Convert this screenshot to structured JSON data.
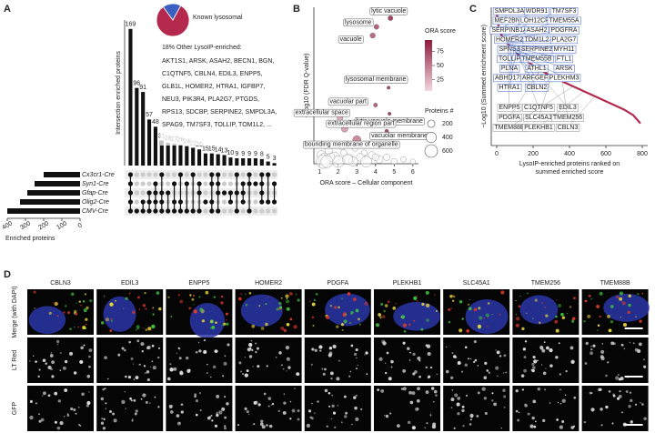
{
  "panel_a": {
    "label": "A",
    "y_label": "Intersection enriched proteins",
    "x_label": "Enriched proteins",
    "sets": [
      "Cx3cr1-Cre",
      "Syn1-Cre",
      "Gfap-Cre",
      "Olig2-Cre",
      "CMV-Cre"
    ],
    "set_sizes": [
      200,
      250,
      290,
      330,
      400
    ],
    "set_xlim": [
      0,
      400
    ],
    "set_xticks": [
      400,
      300,
      200,
      100,
      0
    ],
    "values": [
      169,
      96,
      91,
      57,
      48,
      31,
      28,
      27,
      26,
      24,
      22,
      20,
      15,
      15,
      14,
      13,
      10,
      9,
      9,
      9,
      9,
      8,
      5,
      3
    ],
    "ylim": [
      0,
      180
    ],
    "intersections": [
      [
        0,
        1,
        2,
        3,
        4
      ],
      [
        4
      ],
      [
        3,
        4
      ],
      [
        2,
        3,
        4
      ],
      [
        1,
        2,
        3,
        4
      ],
      [
        0,
        2,
        3,
        4
      ],
      [
        2,
        4
      ],
      [
        1,
        3,
        4
      ],
      [
        0,
        3,
        4
      ],
      [
        1,
        4
      ],
      [
        0,
        4
      ],
      [
        1,
        2,
        4
      ],
      [
        3
      ],
      [
        0,
        1,
        3,
        4
      ],
      [
        0,
        1,
        2,
        4
      ],
      [
        2
      ],
      [
        2,
        3
      ],
      [
        0,
        2,
        4
      ],
      [
        1,
        2,
        3
      ],
      [
        0,
        1,
        4
      ],
      [
        1
      ],
      [
        0,
        1,
        2,
        3
      ],
      [
        0,
        3
      ],
      [
        1,
        3
      ]
    ],
    "pie": {
      "values": [
        82,
        18
      ],
      "colors": [
        "#b5294f",
        "#3b5fc0"
      ],
      "known_label": "Known lysosomal",
      "other_label": "18% Other LysoIP-enriched:",
      "other_list": [
        "AKT1S1, ARSK, ASAH2, BECN1, BGN,",
        "C1QTNF5, CBLN4, EDIL3, ENPP5,",
        "GLB1L, HOMER2, HTRA1, IGFBP7,",
        "NEU3, PIK3R4, PLA2G7, PTGDS,",
        "RPS13, SDCBP, SERPINE2, SMPDL3A,",
        "SPAG9, TM7SF3, TOLLIP, TOM1L2, ..."
      ]
    }
  },
  "panel_b": {
    "label": "B",
    "type": "scatter",
    "x_label": "ORA score – Cellular component",
    "y_label": "−Log10 (FDR Q-value)",
    "xlim": [
      0.7,
      6.3
    ],
    "xticks": [
      1,
      2,
      3,
      4,
      5,
      6
    ],
    "ylim": [
      0,
      72
    ],
    "points": [
      {
        "name": "lytic vacuole",
        "x": 4.8,
        "y": 67,
        "size": 90
      },
      {
        "name": "lysosome",
        "x": 4.05,
        "y": 63,
        "size": 90
      },
      {
        "name": "vacuole",
        "x": 3.85,
        "y": 59,
        "size": 100
      },
      {
        "name": "lysosomal membrane",
        "x": 4.7,
        "y": 35,
        "size": 40
      },
      {
        "name": "vacuolar part",
        "x": 4.0,
        "y": 27,
        "size": 60
      },
      {
        "name": "lytic vacuole membrane",
        "x": 4.75,
        "y": 23,
        "size": 40
      },
      {
        "name": "extracellular space",
        "x": 2.1,
        "y": 21,
        "size": 120
      },
      {
        "name": "extracellular region part",
        "x": 2.35,
        "y": 16,
        "size": 150
      },
      {
        "name": "vacuolar membrane",
        "x": 4.6,
        "y": 15,
        "size": 50
      },
      {
        "name": "bounding membrane of organelle",
        "x": 3.0,
        "y": 11,
        "size": 250
      }
    ],
    "other_points": {
      "x": [
        1.1,
        1.3,
        1.5,
        1.8,
        2.0,
        2.3,
        2.6,
        2.9,
        3.2,
        3.5,
        3.8,
        4.2,
        4.6,
        5.0,
        5.5,
        6.0,
        1.2,
        1.6,
        2.2,
        2.8,
        3.4,
        4.0,
        1.4,
        2.5
      ],
      "y": [
        4,
        2,
        6,
        3,
        1,
        5,
        2,
        7,
        3,
        1,
        4,
        2,
        3,
        1,
        2,
        1,
        1,
        3,
        8,
        1,
        5,
        3,
        1,
        2
      ],
      "size": [
        300,
        600,
        200,
        400,
        500,
        150,
        350,
        120,
        250,
        450,
        180,
        220,
        160,
        140,
        110,
        100,
        700,
        260,
        200,
        320,
        130,
        170,
        550,
        380
      ]
    },
    "color_title": "ORA score",
    "color_lim": [
      5,
      95
    ],
    "color_ticks": [
      25,
      50,
      75
    ],
    "size_title": "Proteins #",
    "size_ticks": [
      200,
      400,
      600
    ]
  },
  "panel_c": {
    "label": "C",
    "type": "line",
    "y_label": "−Log10 (Summed enrichment score)",
    "x_label": [
      "LysoIP-enriched proteins ranked on",
      "summed enriched score"
    ],
    "xlim": [
      -30,
      830
    ],
    "xticks": [
      0,
      200,
      400,
      600,
      800
    ],
    "ylim": [
      0,
      10
    ],
    "x": [
      1,
      10,
      25,
      50,
      100,
      150,
      200,
      250,
      300,
      350,
      400,
      450,
      500,
      550,
      600,
      650,
      700,
      750,
      790
    ],
    "values": [
      9.5,
      8.6,
      8.0,
      7.5,
      6.8,
      6.2,
      5.8,
      5.4,
      5.0,
      4.7,
      4.4,
      4.1,
      3.8,
      3.5,
      3.2,
      2.9,
      2.6,
      2.2,
      1.6
    ],
    "color": "#b5294f",
    "labels_above": [
      "SMPDL3A",
      "WDR91",
      "TM7SF3",
      "MEF2BNB",
      "LOH12CR1",
      "TMEM55A",
      "SERPINB1A",
      "ASAH2",
      "PDGFRA",
      "HOMER2",
      "TOM1L2",
      "PLA2G7",
      "SPNS3",
      "SERPINE2",
      "MYH11",
      "TOLLIP",
      "TMEM55B",
      "FTL1",
      "PLNA",
      "ATHL1",
      "ARSK",
      "ABHD17B",
      "ARFGEF3",
      "PLEKHM3",
      "HTRA1",
      "CBLN2"
    ],
    "labels_below": [
      "ENPP5",
      "C1QTNF5",
      "EDIL3",
      "PDGFA",
      "SLC45A1",
      "TMEM256",
      "TMEM88B",
      "PLEKHB1",
      "CBLN3"
    ]
  },
  "panel_d": {
    "label": "D",
    "columns": [
      "CBLN3",
      "EDIL3",
      "ENPP5",
      "HOMER2",
      "PDGFA",
      "PLEKHB1",
      "SLC45A1",
      "TMEM256",
      "TMEM88B"
    ],
    "rows": [
      "Merge (with DAPI)",
      "LT Red",
      "GFP"
    ]
  }
}
